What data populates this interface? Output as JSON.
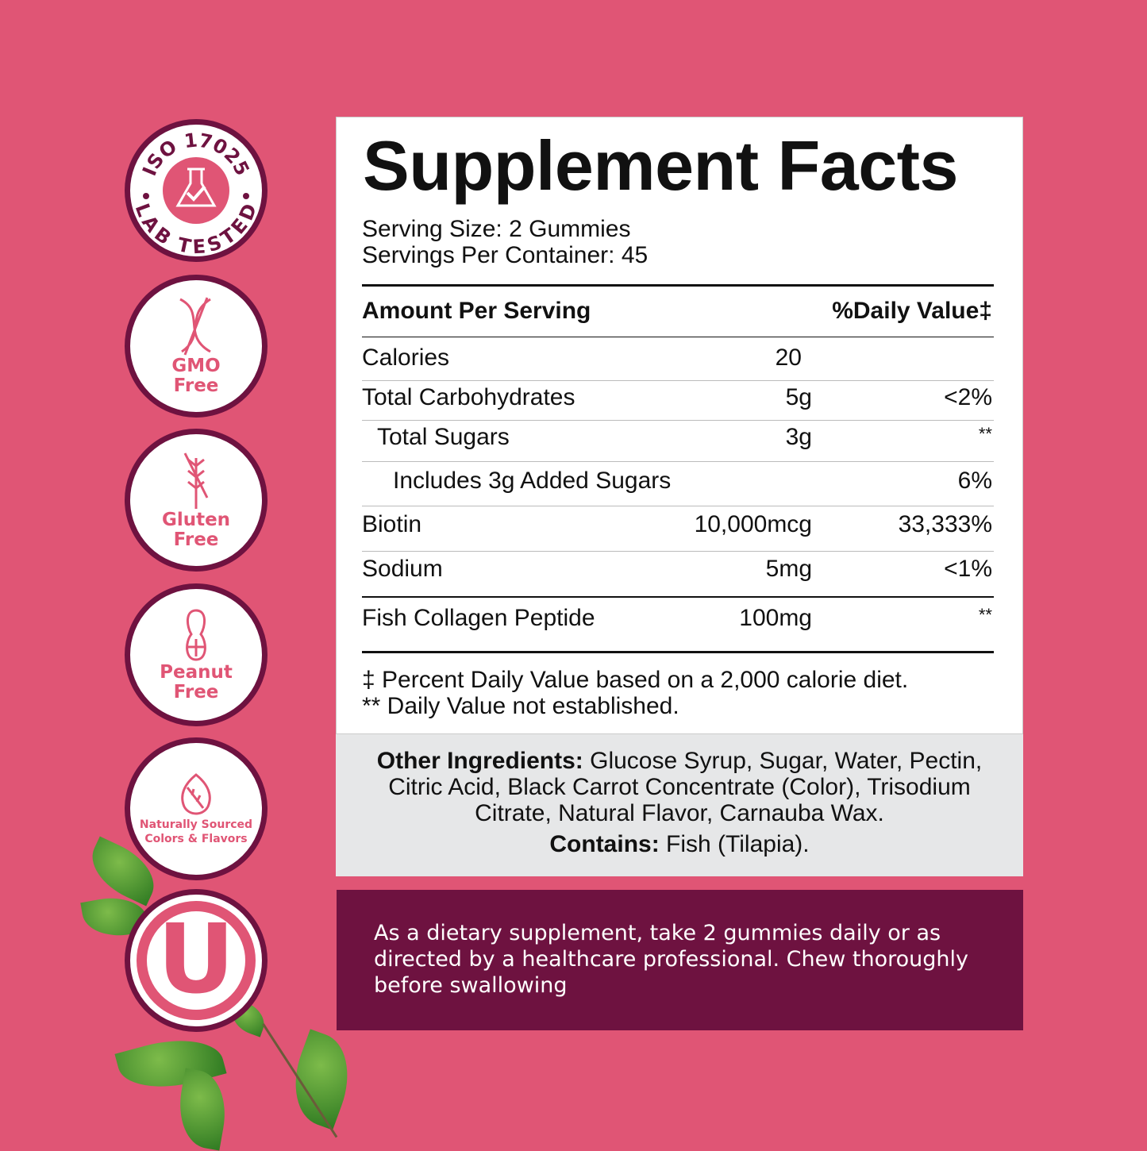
{
  "colors": {
    "background": "#e05575",
    "accent": "#6e1240",
    "panel_grey": "#e6e7e8"
  },
  "badges": [
    {
      "icon": "flask-check-icon",
      "text": "ISO 17025",
      "text2": "LAB TESTED"
    },
    {
      "icon": "dna-slash-icon",
      "text": "GMO",
      "text2": "Free"
    },
    {
      "icon": "wheat-slash-icon",
      "text": "Gluten",
      "text2": "Free"
    },
    {
      "icon": "peanut-slash-icon",
      "text": "Peanut",
      "text2": "Free"
    },
    {
      "icon": "leaf-drop-icon",
      "text": "Naturally Sourced",
      "text2": "Colors & Flavors"
    },
    {
      "icon": "orthodox-union-kosher-icon",
      "text": "U"
    }
  ],
  "facts": {
    "title": "Supplement Facts",
    "serving_size": "Serving Size: 2 Gummies",
    "servings_per_container": "Servings Per Container: 45",
    "header_amount": "Amount Per Serving",
    "header_dv": "%Daily Value‡",
    "rows": [
      {
        "name": "Calories",
        "amount": "20",
        "dv": ""
      },
      {
        "name": "Total Carbohydrates",
        "amount": "5g",
        "dv": "<2%"
      },
      {
        "name": "Total Sugars",
        "amount": "3g",
        "dv": "**"
      },
      {
        "name": "Includes 3g Added Sugars",
        "amount": "",
        "dv": "6%"
      },
      {
        "name": "Biotin",
        "amount": "10,000mcg",
        "dv": "33,333%"
      },
      {
        "name": "Sodium",
        "amount": "5mg",
        "dv": "<1%"
      },
      {
        "name": "Fish Collagen Peptide",
        "amount": "100mg",
        "dv": "**"
      }
    ],
    "footnote1": "‡ Percent Daily Value based on a 2,000 calorie diet.",
    "footnote2": "** Daily Value not established."
  },
  "other": {
    "label": "Other Ingredients:",
    "text": " Glucose Syrup, Sugar, Water, Pectin, Citric Acid, Black Carrot Concentrate (Color), Trisodium Citrate, Natural Flavor, Carnauba Wax.",
    "contains_label": "Contains:",
    "contains_text": " Fish (Tilapia)."
  },
  "directions": "As a dietary supplement, take 2 gummies daily or as directed by a healthcare professional. Chew thoroughly before swallowing"
}
